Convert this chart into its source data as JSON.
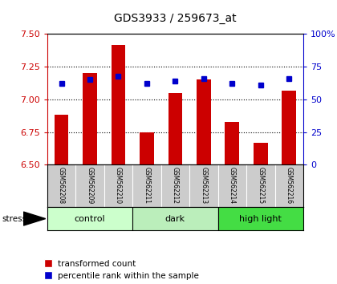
{
  "title": "GDS3933 / 259673_at",
  "samples": [
    "GSM562208",
    "GSM562209",
    "GSM562210",
    "GSM562211",
    "GSM562212",
    "GSM562213",
    "GSM562214",
    "GSM562215",
    "GSM562216"
  ],
  "red_values": [
    6.88,
    7.2,
    7.42,
    6.75,
    7.05,
    7.15,
    6.83,
    6.67,
    7.07
  ],
  "blue_values": [
    62,
    65,
    68,
    62,
    64,
    66,
    62,
    61,
    66
  ],
  "ylim_left": [
    6.5,
    7.5
  ],
  "ylim_right": [
    0,
    100
  ],
  "yticks_left": [
    6.5,
    6.75,
    7.0,
    7.25,
    7.5
  ],
  "yticks_right": [
    0,
    25,
    50,
    75,
    100
  ],
  "groups": [
    {
      "label": "control",
      "indices": [
        0,
        1,
        2
      ]
    },
    {
      "label": "dark",
      "indices": [
        3,
        4,
        5
      ]
    },
    {
      "label": "high light",
      "indices": [
        6,
        7,
        8
      ]
    }
  ],
  "group_colors": [
    "#ccffcc",
    "#bbeebb",
    "#44dd44"
  ],
  "stress_label": "stress",
  "bar_color": "#cc0000",
  "dot_color": "#0000cc",
  "bar_width": 0.5,
  "background_color": "#ffffff",
  "left_axis_color": "#cc0000",
  "right_axis_color": "#0000cc",
  "sample_box_color": "#cccccc",
  "legend_red": "transformed count",
  "legend_blue": "percentile rank within the sample"
}
